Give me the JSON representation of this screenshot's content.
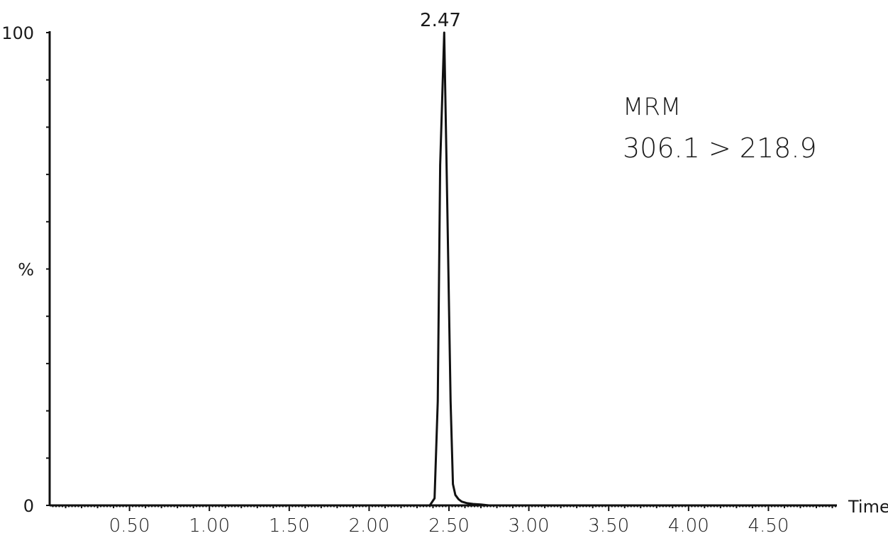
{
  "chart_data": {
    "type": "line",
    "title": "",
    "xlabel": "Time",
    "ylabel": "%",
    "xlim": [
      0.0,
      4.92
    ],
    "ylim": [
      0,
      100
    ],
    "x_ticks": [
      0.5,
      1.0,
      1.5,
      2.0,
      2.5,
      3.0,
      3.5,
      4.0,
      4.5
    ],
    "x_tick_labels": [
      "0.50",
      "1.00",
      "1.50",
      "2.00",
      "2.50",
      "3.00",
      "3.50",
      "4.00",
      "4.50"
    ],
    "y_ticks": [
      0,
      50,
      100
    ],
    "y_tick_labels": [
      "0",
      "%",
      "100"
    ],
    "grid": false,
    "annotations": {
      "peak_label": "2.47",
      "transition_line1": "MRM",
      "transition_line2": "306.1 > 218.9"
    },
    "series": [
      {
        "x": [
          0.0,
          2.38,
          2.41,
          2.43,
          2.445,
          2.47,
          2.49,
          2.51,
          2.525,
          2.54,
          2.56,
          2.58,
          2.61,
          2.65,
          2.7,
          2.75,
          4.92
        ],
        "values": [
          0,
          0,
          1.5,
          22,
          72,
          100,
          62,
          22,
          4.5,
          2.2,
          1.3,
          0.8,
          0.5,
          0.3,
          0.2,
          0,
          0
        ]
      }
    ]
  }
}
